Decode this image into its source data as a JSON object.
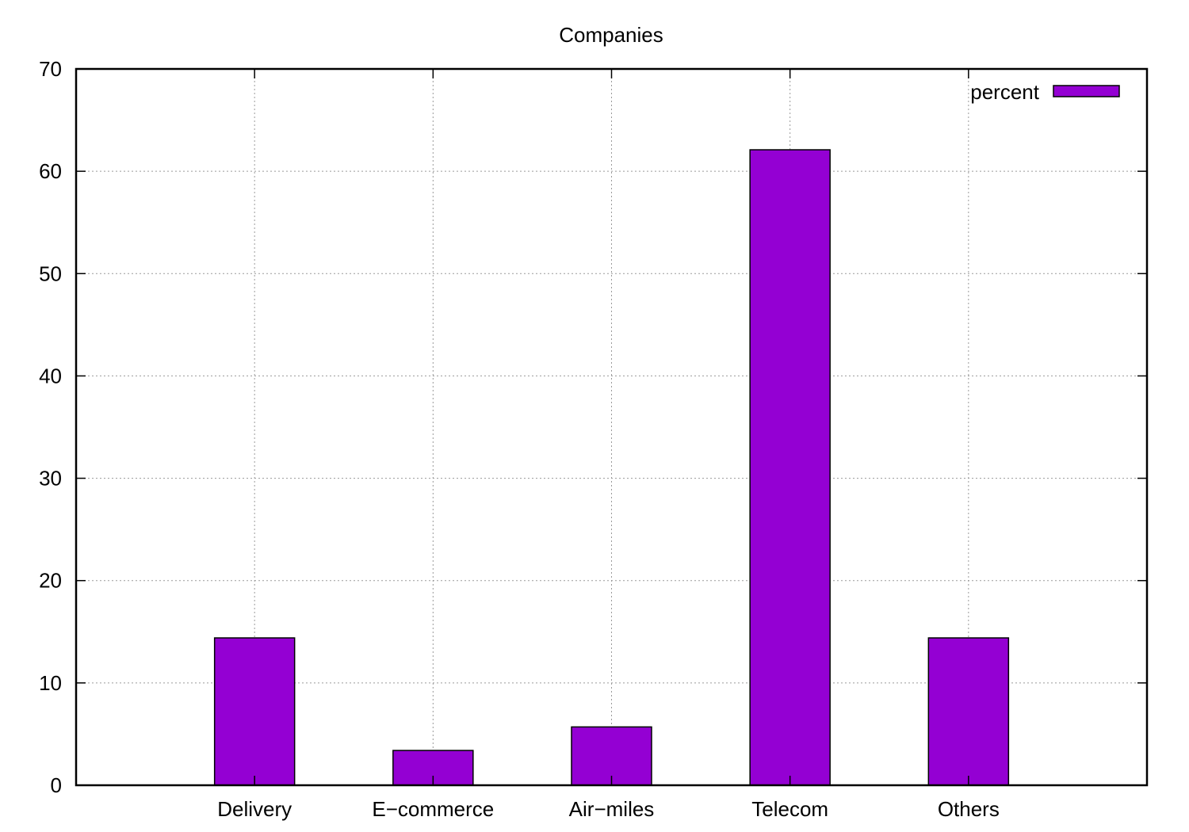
{
  "chart_data": {
    "type": "bar",
    "title": "Companies",
    "xlabel": "",
    "ylabel": "",
    "categories": [
      "Delivery",
      "E−commerce",
      "Air−miles",
      "Telecom",
      "Others"
    ],
    "series": [
      {
        "name": "percent",
        "values": [
          14.4,
          3.4,
          5.7,
          62.1,
          14.4
        ],
        "color": "#9400d3"
      }
    ],
    "ylim": [
      0,
      70
    ],
    "yticks": [
      "0",
      "10",
      "20",
      "30",
      "40",
      "50",
      "60",
      "70"
    ],
    "grid": true,
    "legend_position": "top-right"
  }
}
